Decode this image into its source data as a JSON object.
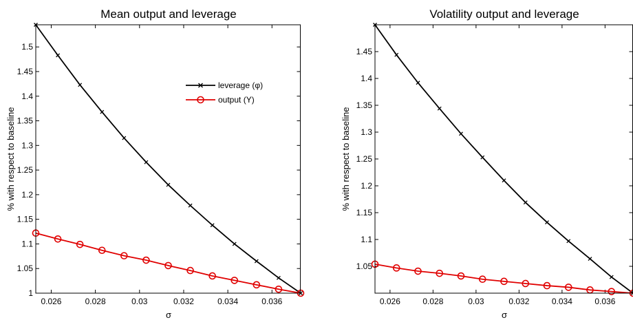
{
  "chart_data": [
    {
      "type": "line",
      "title": "Mean output and leverage",
      "xlabel": "σ",
      "ylabel": "% with respect to baseline",
      "xlim": [
        0.0253,
        0.0373
      ],
      "ylim": [
        1.0,
        1.545
      ],
      "xticks": [
        0.026,
        0.028,
        0.03,
        0.032,
        0.034,
        0.036
      ],
      "xtick_labels": [
        "0.026",
        "0.028",
        "0.03",
        "0.032",
        "0.034",
        "0.036"
      ],
      "yticks": [
        1,
        1.05,
        1.1,
        1.15,
        1.2,
        1.25,
        1.3,
        1.35,
        1.4,
        1.45,
        1.5
      ],
      "ytick_labels": [
        "1",
        "1.05",
        "1.1",
        "1.15",
        "1.2",
        "1.25",
        "1.3",
        "1.35",
        "1.4",
        "1.45",
        "1.5"
      ],
      "grid": false,
      "legend": "upper-right",
      "x": [
        0.0253,
        0.0263,
        0.0273,
        0.0283,
        0.0293,
        0.0303,
        0.0313,
        0.0323,
        0.0333,
        0.0343,
        0.0353,
        0.0363,
        0.0373
      ],
      "series": [
        {
          "name": "leverage (φ)",
          "color": "#000000",
          "marker": "x",
          "values": [
            1.545,
            1.483,
            1.423,
            1.368,
            1.315,
            1.266,
            1.22,
            1.178,
            1.138,
            1.1,
            1.065,
            1.031,
            1.0
          ]
        },
        {
          "name": "output (Y)",
          "color": "#e00000",
          "marker": "o",
          "values": [
            1.122,
            1.11,
            1.099,
            1.087,
            1.076,
            1.067,
            1.056,
            1.046,
            1.035,
            1.026,
            1.017,
            1.008,
            1.0
          ]
        }
      ]
    },
    {
      "type": "line",
      "title": "Volatility output and leverage",
      "xlabel": "σ",
      "ylabel": "% with respect to baseline",
      "xlim": [
        0.0253,
        0.0373
      ],
      "ylim": [
        1.0,
        1.5
      ],
      "xticks": [
        0.026,
        0.028,
        0.03,
        0.032,
        0.034,
        0.036
      ],
      "xtick_labels": [
        "0.026",
        "0.028",
        "0.03",
        "0.032",
        "0.034",
        "0.036"
      ],
      "yticks": [
        1.05,
        1.1,
        1.15,
        1.2,
        1.25,
        1.3,
        1.35,
        1.4,
        1.45
      ],
      "ytick_labels": [
        "1.05",
        "1.1",
        "1.15",
        "1.2",
        "1.25",
        "1.3",
        "1.35",
        "1.4",
        "1.45"
      ],
      "grid": false,
      "legend": "",
      "x": [
        0.0253,
        0.0263,
        0.0273,
        0.0283,
        0.0293,
        0.0303,
        0.0313,
        0.0323,
        0.0333,
        0.0343,
        0.0353,
        0.0363,
        0.0373
      ],
      "series": [
        {
          "name": "",
          "color": "#000000",
          "marker": "x",
          "values": [
            1.5,
            1.444,
            1.392,
            1.344,
            1.297,
            1.253,
            1.21,
            1.169,
            1.132,
            1.097,
            1.064,
            1.03,
            1.0
          ]
        },
        {
          "name": "",
          "color": "#e00000",
          "marker": "o",
          "values": [
            1.054,
            1.047,
            1.041,
            1.037,
            1.032,
            1.026,
            1.022,
            1.018,
            1.014,
            1.011,
            1.006,
            1.003,
            1.0
          ]
        }
      ]
    }
  ]
}
